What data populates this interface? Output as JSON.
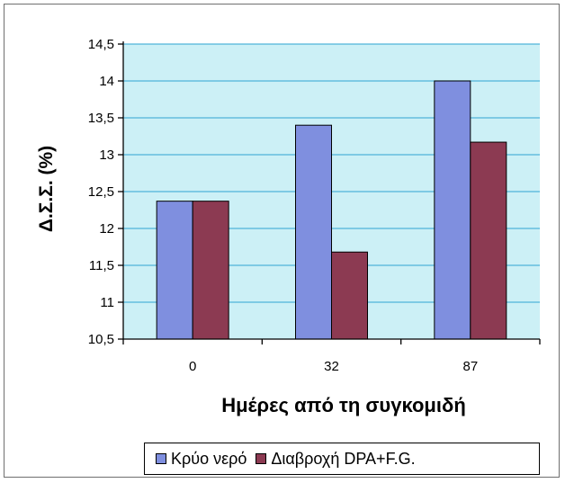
{
  "chart_data": {
    "type": "bar",
    "title": "",
    "xlabel": "Ημέρες από τη συγκομιδή",
    "ylabel": "Δ.Σ.Σ. (%)",
    "categories": [
      "0",
      "32",
      "87"
    ],
    "series": [
      {
        "name": "Κρύο νερό",
        "values": [
          12.37,
          13.4,
          14.0
        ],
        "color": "#7f8fdf"
      },
      {
        "name": "Διαβροχή DPA+F.G.",
        "values": [
          12.37,
          11.68,
          13.17
        ],
        "color": "#8c3a52"
      }
    ],
    "ylim": [
      10.5,
      14.5
    ],
    "yticks": [
      "10,5",
      "11",
      "11,5",
      "12",
      "12,5",
      "13",
      "13,5",
      "14",
      "14,5"
    ],
    "ytick_values": [
      10.5,
      11,
      11.5,
      12,
      12.5,
      13,
      13.5,
      14,
      14.5
    ],
    "grid": true,
    "grid_color": "#4fb3d9",
    "plot_background": "#ccf0f6",
    "legend_position": "bottom"
  }
}
